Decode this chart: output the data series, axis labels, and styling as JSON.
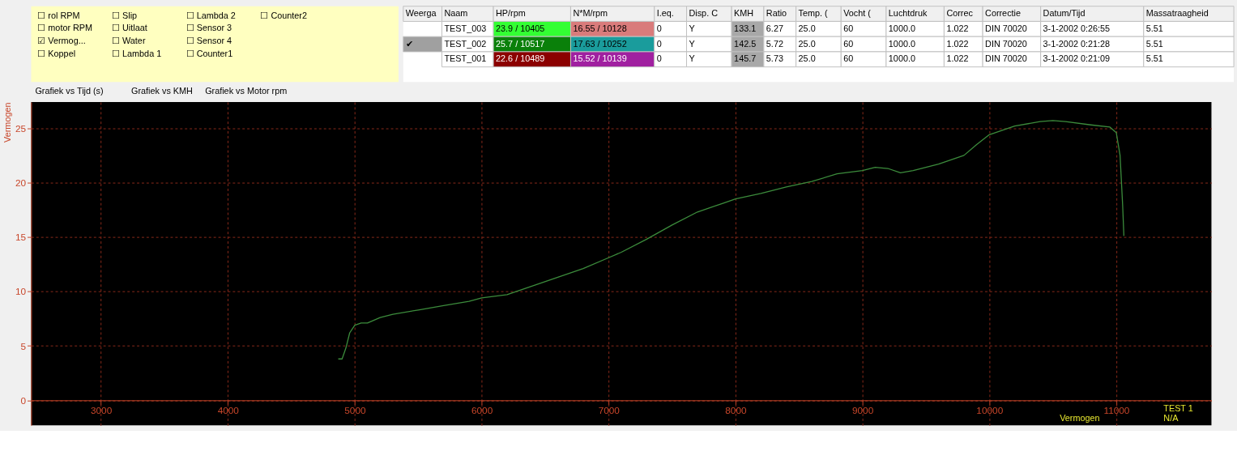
{
  "chart_data": [
    {
      "type": "other",
      "annotations": [
        "☐ rol RPM",
        "☐ motor RPM",
        "☑ Vermog...",
        "☐ Koppel",
        "☐ Slip",
        "☐ Uitlaat",
        "☐ Water",
        "☐ Lambda 1",
        "☐ Lambda 2",
        "☐ Sensor 3",
        "☐ Sensor 4",
        "☐ Counter1",
        "☐ Counter2"
      ]
    },
    {
      "type": "other",
      "categories": [
        "Weerga",
        "Naam",
        "HP/rpm",
        "N*M/rpm",
        "I.eq.",
        "Disp. C",
        "KMH",
        "Ratio",
        "Temp. (",
        "Vocht (",
        "Luchtdruk",
        "Correc",
        "Correctie",
        "Datum/Tijd",
        "Massatraagheid"
      ],
      "cell_labels": [
        [
          null,
          "TEST_003",
          "23.9 / 10405",
          "16.55 / 10128",
          "0",
          "Y",
          "133.1",
          "6.27",
          "25.0",
          "60",
          "1000.0",
          "1.022",
          "DIN 70020",
          "3-1-2002 0:26:55",
          "5.51"
        ],
        [
          "✔",
          "TEST_002",
          "25.7 / 10517",
          "17.63 / 10252",
          "0",
          "Y",
          "142.5",
          "5.72",
          "25.0",
          "60",
          "1000.0",
          "1.022",
          "DIN 70020",
          "3-1-2002 0:21:28",
          "5.51"
        ],
        [
          null,
          "TEST_001",
          "22.6 / 10489",
          "15.52 / 10139",
          "0",
          "Y",
          "145.7",
          "5.73",
          "25.0",
          "60",
          "1000.0",
          "1.022",
          "DIN 70020",
          "3-1-2002 0:21:09",
          "5.51"
        ]
      ],
      "colors": [
        [
          null,
          null,
          "#33ff33",
          "#d97b7b",
          null,
          null,
          "#a8a8a8",
          null,
          null,
          null,
          null,
          null,
          null,
          null,
          null
        ],
        [
          "#a0a0a0",
          null,
          "#0a800a",
          "#1a9c9c",
          null,
          null,
          "#a8a8a8",
          null,
          null,
          null,
          null,
          null,
          null,
          null,
          null
        ],
        [
          null,
          null,
          "#8b0000",
          "#a020a0",
          null,
          null,
          "#a8a8a8",
          null,
          null,
          null,
          null,
          null,
          null,
          null,
          null
        ]
      ]
    },
    {
      "type": "other",
      "annotations": [
        "Grafiek vs Tijd (s)",
        "Grafiek vs KMH",
        "Grafiek vs Motor rpm"
      ]
    },
    {
      "type": "line",
      "ylabel": "Vermogen",
      "grid": true,
      "marker": "none",
      "x": [
        4870,
        4900,
        4930,
        4960,
        5000,
        5050,
        5100,
        5200,
        5300,
        5500,
        5700,
        5900,
        6000,
        6200,
        6400,
        6600,
        6800,
        7000,
        7100,
        7300,
        7500,
        7700,
        7900,
        8000,
        8200,
        8400,
        8600,
        8800,
        9000,
        9100,
        9200,
        9300,
        9400,
        9600,
        9800,
        9900,
        10000,
        10200,
        10400,
        10500,
        10600,
        10800,
        10950,
        11000,
        11030,
        11050,
        11060
      ],
      "series": [
        {
          "color": "#3c8c3c",
          "values": [
            3.8,
            3.8,
            4.8,
            6.2,
            6.9,
            7.1,
            7.1,
            7.6,
            7.9,
            8.3,
            8.7,
            9.1,
            9.4,
            9.7,
            10.5,
            11.3,
            12.1,
            13.1,
            13.6,
            14.8,
            16.1,
            17.3,
            18.1,
            18.5,
            19.0,
            19.6,
            20.1,
            20.8,
            21.1,
            21.4,
            21.3,
            20.9,
            21.1,
            21.7,
            22.5,
            23.5,
            24.4,
            25.2,
            25.6,
            25.7,
            25.6,
            25.3,
            25.1,
            24.6,
            22.5,
            18.0,
            15.1
          ]
        }
      ],
      "xlim": [
        2450,
        11750
      ],
      "ylim": [
        -2.3,
        27.4
      ],
      "xticks": [
        3000,
        4000,
        5000,
        6000,
        7000,
        8000,
        9000,
        10000,
        11000
      ],
      "yticks": [
        0,
        5,
        10,
        15,
        20,
        25
      ],
      "annotations": [
        "TEST  1",
        "Vermogen",
        "N/A"
      ]
    }
  ]
}
